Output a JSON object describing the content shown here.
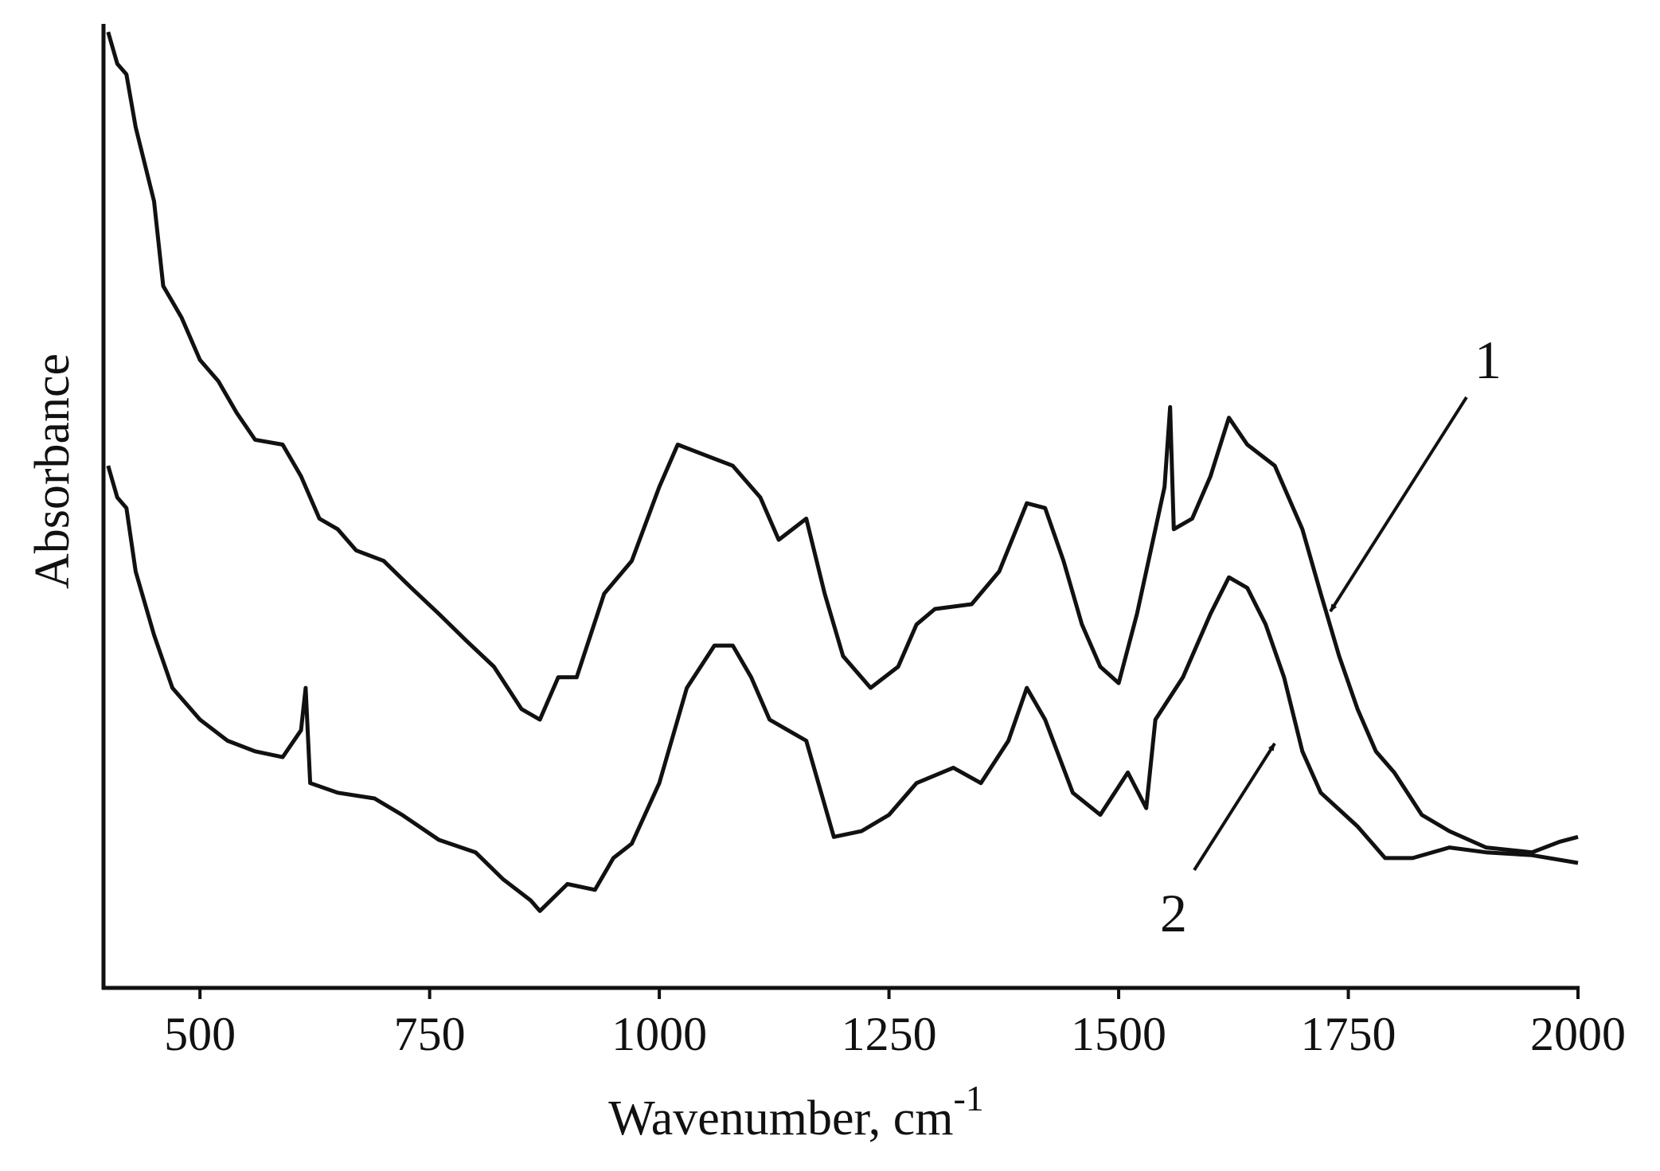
{
  "chart_data": {
    "type": "line",
    "xlabel": "Wavenumber, cm",
    "xlabel_sup": "-1",
    "ylabel": "Absorbance",
    "xlim": [
      395,
      2000
    ],
    "ylim": [
      0,
      100
    ],
    "xticks": [
      500,
      750,
      1000,
      1250,
      1500,
      1750,
      2000
    ],
    "annotations": [
      "1",
      "2"
    ],
    "series": [
      {
        "name": "1",
        "color": "#111111",
        "x": [
          400,
          410,
          420,
          430,
          450,
          460,
          480,
          500,
          520,
          540,
          560,
          590,
          610,
          630,
          650,
          670,
          700,
          730,
          760,
          790,
          820,
          850,
          870,
          890,
          910,
          940,
          970,
          1000,
          1020,
          1050,
          1080,
          1110,
          1130,
          1160,
          1180,
          1200,
          1230,
          1260,
          1280,
          1300,
          1340,
          1370,
          1400,
          1420,
          1440,
          1460,
          1480,
          1500,
          1520,
          1540,
          1550,
          1556,
          1560,
          1580,
          1600,
          1620,
          1640,
          1670,
          1700,
          1720,
          1740,
          1760,
          1780,
          1800,
          1830,
          1860,
          1900,
          1950,
          1980,
          2000
        ],
        "values": [
          99.4,
          96.1,
          95.0,
          89.5,
          81.8,
          73.0,
          69.7,
          65.3,
          63.1,
          59.8,
          57.0,
          56.5,
          53.2,
          48.8,
          47.7,
          45.5,
          44.4,
          41.6,
          38.9,
          36.1,
          33.4,
          29.0,
          27.9,
          32.3,
          32.3,
          41.0,
          44.4,
          52.1,
          56.5,
          55.4,
          54.3,
          51.0,
          46.6,
          48.8,
          41.0,
          34.5,
          31.2,
          33.4,
          37.8,
          39.4,
          39.9,
          43.3,
          50.4,
          49.9,
          44.4,
          37.8,
          33.4,
          31.7,
          38.9,
          47.7,
          52.1,
          60.4,
          47.7,
          48.8,
          53.2,
          59.3,
          56.5,
          54.3,
          47.7,
          41.0,
          34.5,
          29.0,
          24.6,
          22.4,
          18.0,
          16.3,
          14.6,
          14.1,
          15.2,
          15.7
        ]
      },
      {
        "name": "2",
        "color": "#111111",
        "x": [
          400,
          410,
          420,
          430,
          450,
          470,
          500,
          530,
          560,
          590,
          610,
          615,
          620,
          650,
          690,
          720,
          760,
          800,
          830,
          860,
          870,
          900,
          930,
          950,
          970,
          1000,
          1030,
          1060,
          1080,
          1100,
          1120,
          1140,
          1160,
          1190,
          1220,
          1250,
          1280,
          1320,
          1350,
          1380,
          1400,
          1420,
          1450,
          1480,
          1510,
          1530,
          1540,
          1570,
          1600,
          1620,
          1640,
          1660,
          1680,
          1700,
          1720,
          1760,
          1790,
          1820,
          1860,
          1900,
          1950,
          2000
        ],
        "values": [
          54.3,
          51.0,
          49.9,
          43.3,
          36.7,
          31.2,
          27.9,
          25.7,
          24.6,
          24.0,
          26.8,
          31.2,
          21.3,
          20.3,
          19.7,
          18.0,
          15.4,
          14.1,
          11.3,
          9.1,
          8.0,
          10.8,
          10.2,
          13.5,
          15.0,
          21.3,
          31.2,
          35.6,
          35.6,
          32.3,
          27.9,
          26.8,
          25.7,
          15.7,
          16.3,
          18.0,
          21.3,
          22.9,
          21.3,
          25.7,
          31.2,
          27.9,
          20.3,
          18.0,
          22.4,
          18.7,
          27.9,
          32.3,
          38.9,
          42.7,
          41.6,
          37.8,
          32.3,
          24.6,
          20.3,
          16.8,
          13.5,
          13.5,
          14.6,
          14.1,
          13.8,
          13.0
        ]
      }
    ]
  }
}
